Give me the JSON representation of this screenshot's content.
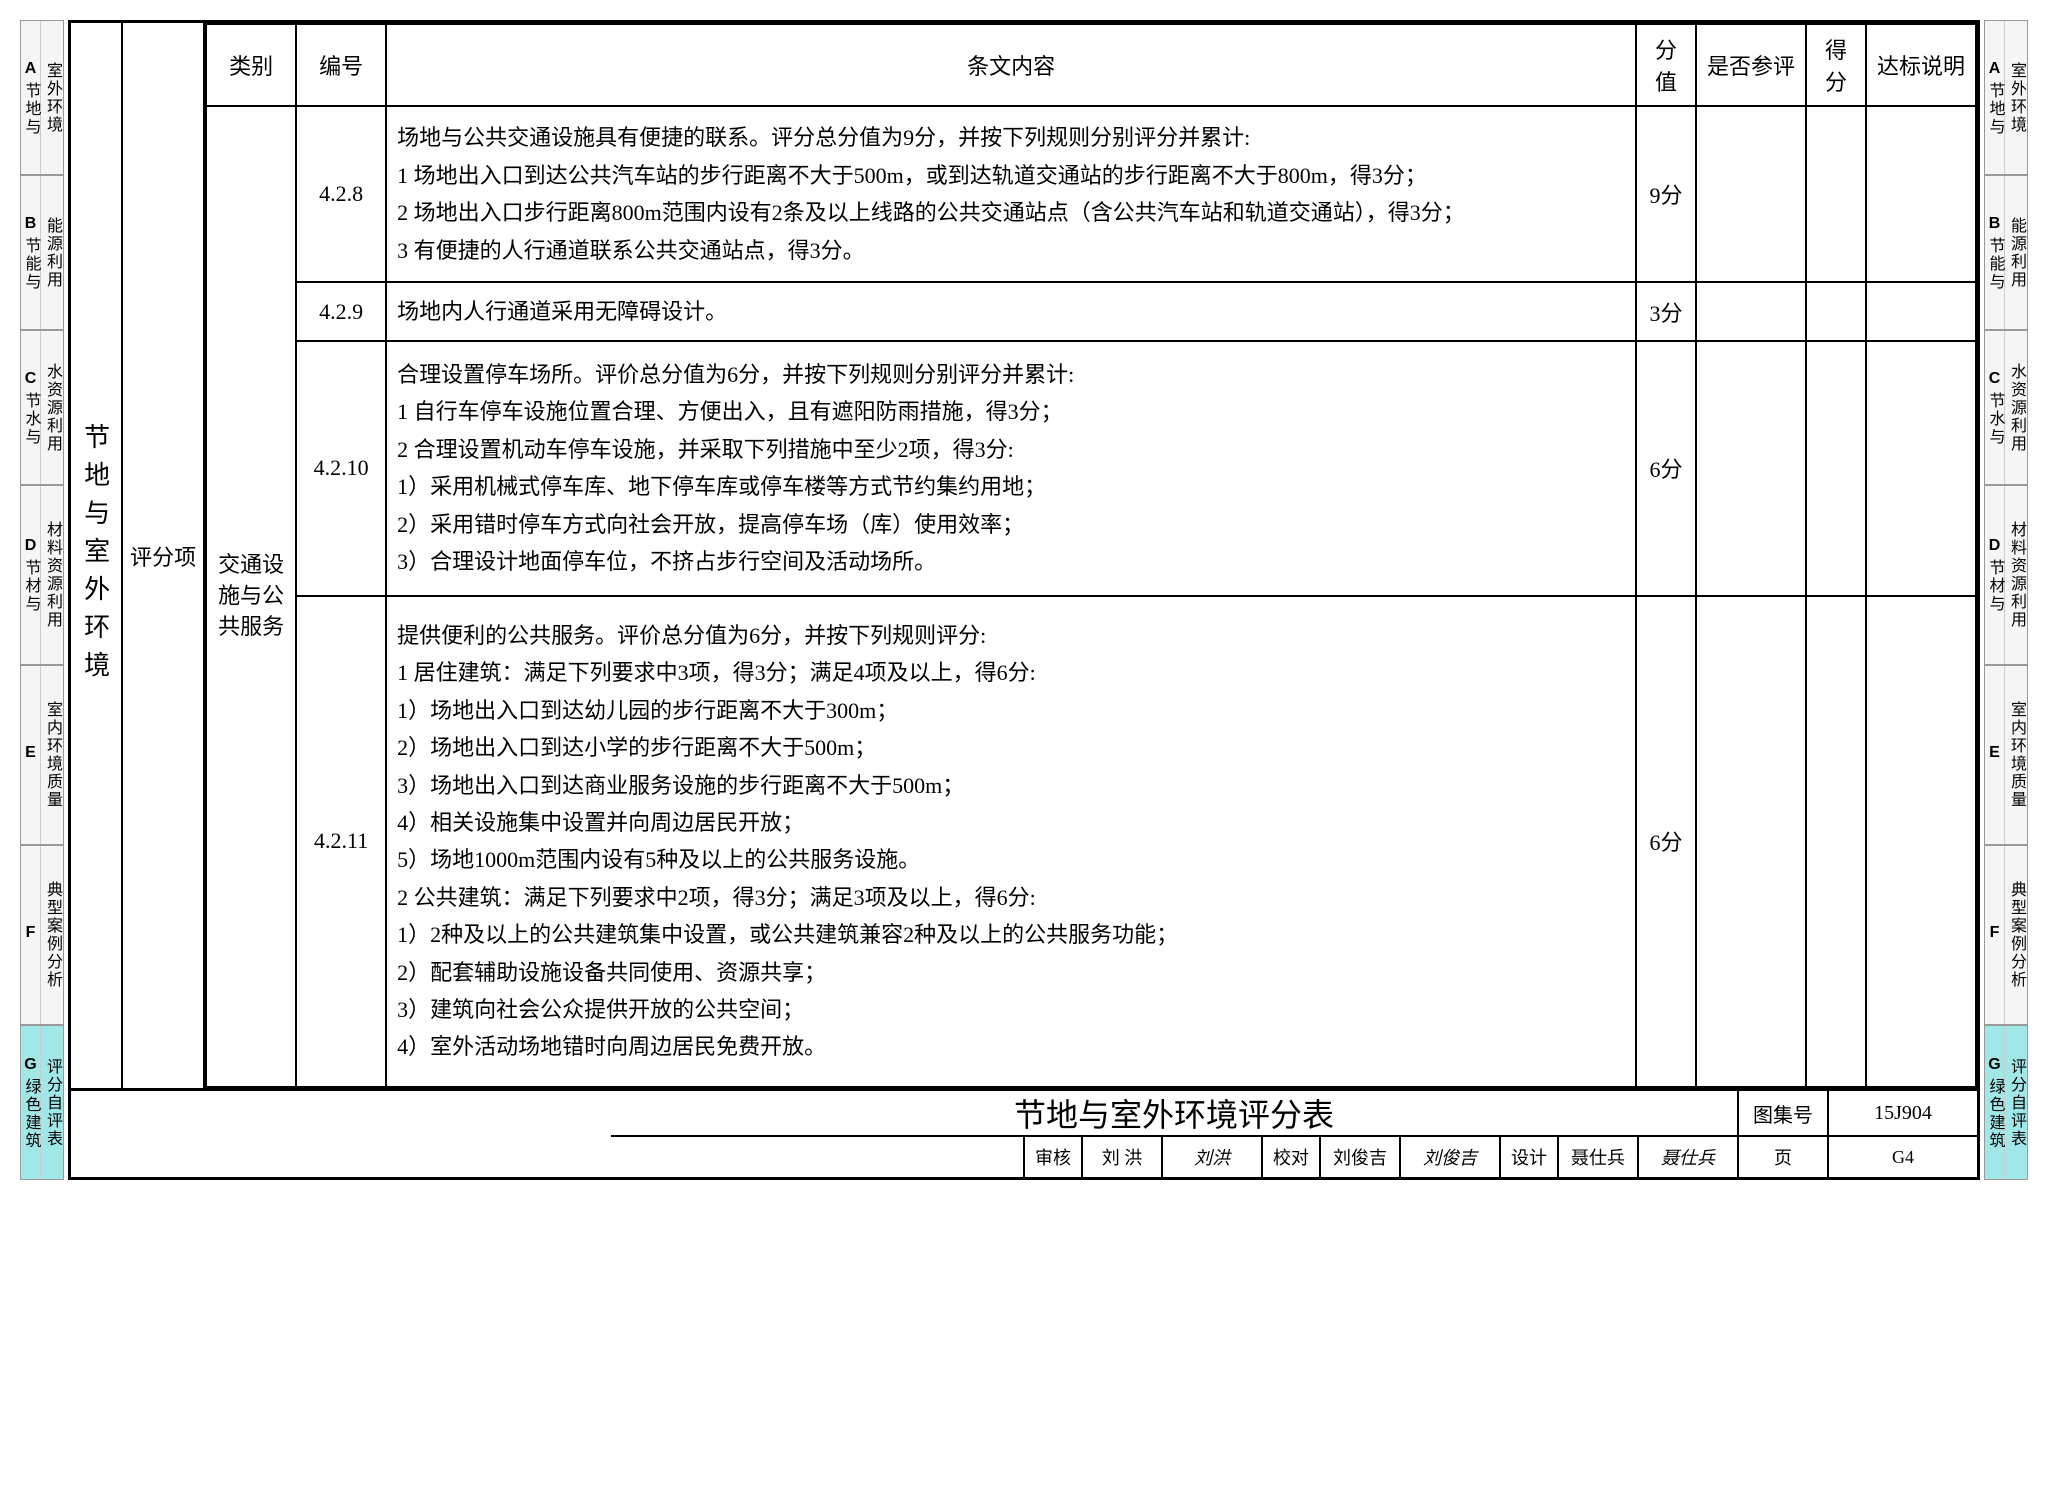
{
  "sideTabs": [
    {
      "letter": "A",
      "label1": "节地与",
      "label2": "室外环境",
      "tall": false
    },
    {
      "letter": "B",
      "label1": "节能与",
      "label2": "能源利用",
      "tall": false
    },
    {
      "letter": "C",
      "label1": "节水与",
      "label2": "水资源利用",
      "tall": false
    },
    {
      "letter": "D",
      "label1": "节材与",
      "label2": "材料资源利用",
      "tall": true
    },
    {
      "letter": "E",
      "label1": "",
      "label2": "室内环境质量",
      "tall": true
    },
    {
      "letter": "F",
      "label1": "",
      "label2": "典型案例分析",
      "tall": true
    },
    {
      "letter": "G",
      "label1": "绿色建筑",
      "label2": "评分自评表",
      "tall": false,
      "active": true
    }
  ],
  "vertLabel": "节地与室外环境",
  "scoreType": "评分项",
  "headers": {
    "category": "类别",
    "number": "编号",
    "content": "条文内容",
    "score": "分值",
    "evaluated": "是否参评",
    "got": "得分",
    "note": "达标说明"
  },
  "categoryLabel": "交通设施与公共服务",
  "rows": [
    {
      "num": "4.2.8",
      "score": "9分",
      "content": "场地与公共交通设施具有便捷的联系。评分总分值为9分，并按下列规则分别评分并累计:\n1 场地出入口到达公共汽车站的步行距离不大于500m，或到达轨道交通站的步行距离不大于800m，得3分；\n2 场地出入口步行距离800m范围内设有2条及以上线路的公共交通站点（含公共汽车站和轨道交通站），得3分；\n3 有便捷的人行通道联系公共交通站点，得3分。"
    },
    {
      "num": "4.2.9",
      "score": "3分",
      "content": "场地内人行通道采用无障碍设计。"
    },
    {
      "num": "4.2.10",
      "score": "6分",
      "content": "合理设置停车场所。评价总分值为6分，并按下列规则分别评分并累计:\n1 自行车停车设施位置合理、方便出入，且有遮阳防雨措施，得3分；\n2 合理设置机动车停车设施，并采取下列措施中至少2项，得3分:\n1）采用机械式停车库、地下停车库或停车楼等方式节约集约用地；\n2）采用错时停车方式向社会开放，提高停车场（库）使用效率；\n3）合理设计地面停车位，不挤占步行空间及活动场所。"
    },
    {
      "num": "4.2.11",
      "score": "6分",
      "content": "提供便利的公共服务。评价总分值为6分，并按下列规则评分:\n1 居住建筑：满足下列要求中3项，得3分；满足4项及以上，得6分:\n1）场地出入口到达幼儿园的步行距离不大于300m；\n2）场地出入口到达小学的步行距离不大于500m；\n3）场地出入口到达商业服务设施的步行距离不大于500m；\n4）相关设施集中设置并向周边居民开放；\n5）场地1000m范围内设有5种及以上的公共服务设施。\n2 公共建筑：满足下列要求中2项，得3分；满足3项及以上，得6分:\n1）2种及以上的公共建筑集中设置，或公共建筑兼容2种及以上的公共服务功能；\n2）配套辅助设施设备共同使用、资源共享；\n3）建筑向社会公众提供开放的公共空间；\n4）室外活动场地错时向周边居民免费开放。"
    }
  ],
  "footer": {
    "title": "节地与室外环境评分表",
    "atlasLabel": "图集号",
    "atlasVal": "15J904",
    "pageLabel": "页",
    "pageVal": "G4",
    "sigs": [
      {
        "label": "审核",
        "name": "刘 洪",
        "sig": "刘洪"
      },
      {
        "label": "校对",
        "name": "刘俊吉",
        "sig": "刘俊吉"
      },
      {
        "label": "设计",
        "name": "聂仕兵",
        "sig": "聂仕兵"
      }
    ]
  }
}
